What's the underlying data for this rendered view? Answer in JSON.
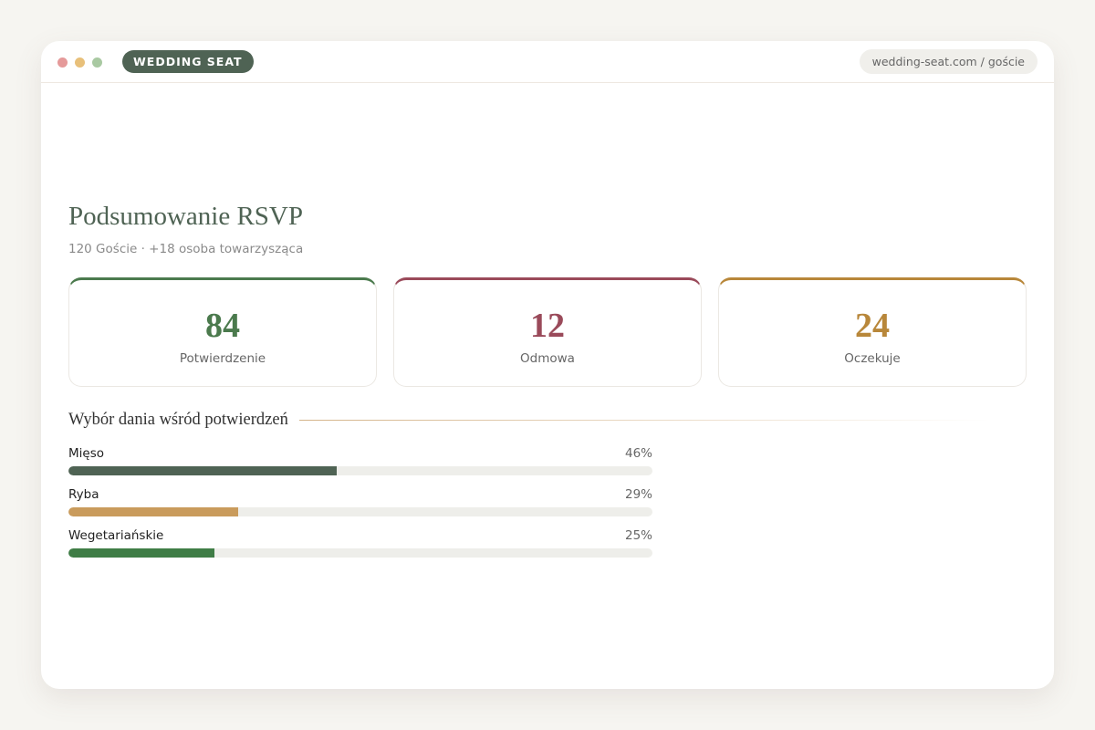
{
  "browser": {
    "brand": "WEDDING SEAT",
    "url": "wedding-seat.com / goście"
  },
  "header": {
    "title": "Podsumowanie RSVP",
    "subtitle": "120 Goście · +18 osoba towarzysząca"
  },
  "stats": [
    {
      "value": 84,
      "label": "Potwierdzenie",
      "color": "#4b7a4d"
    },
    {
      "value": 12,
      "label": "Odmowa",
      "color": "#9a4a5a"
    },
    {
      "value": 24,
      "label": "Oczekuje",
      "color": "#b8873a"
    }
  ],
  "chart_data": {
    "type": "bar",
    "title": "Wybór dania wśród potwierdzeń",
    "categories": [
      "Mięso",
      "Ryba",
      "Wegetariańskie"
    ],
    "values": [
      46,
      29,
      25
    ],
    "value_labels": [
      "46%",
      "29%",
      "25%"
    ],
    "colors": [
      "#4f6354",
      "#c99b5c",
      "#3f7d46"
    ],
    "xlim": [
      0,
      100
    ]
  }
}
